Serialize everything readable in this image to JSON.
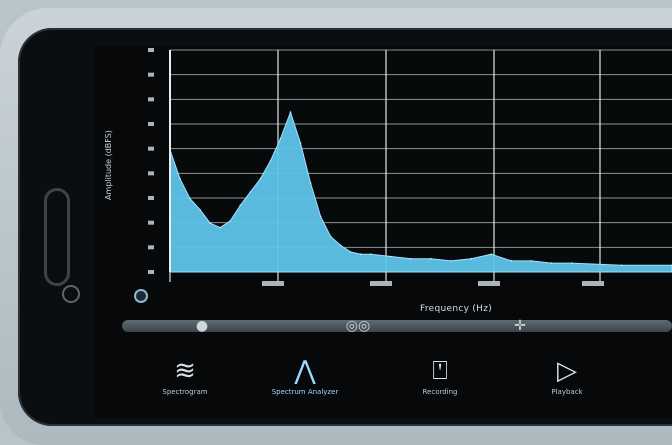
{
  "app": {
    "y_axis_label": "Amplitude (dBFS)",
    "x_axis_label": "Frequency (Hz)"
  },
  "colors": {
    "spectrum_fill": "#5fc4ea",
    "grid": "#ffffff",
    "background": "#060809"
  },
  "toolbar": {
    "icons": [
      "record-dot-icon",
      "link-icon",
      "adjust-icon"
    ]
  },
  "tabs": [
    {
      "label": "Spectrogram",
      "icon": "spectrogram-icon",
      "active": false
    },
    {
      "label": "Spectrum Analyzer",
      "icon": "spectrum-icon",
      "active": true
    },
    {
      "label": "Recording",
      "icon": "microphone-icon",
      "active": false
    },
    {
      "label": "Playback",
      "icon": "play-icon",
      "active": false
    }
  ],
  "chart_data": {
    "type": "area",
    "xlabel": "Frequency (Hz)",
    "ylabel": "Amplitude (dBFS)",
    "grid": true,
    "x": [
      0,
      100,
      200,
      300,
      400,
      500,
      600,
      700,
      800,
      900,
      1000,
      1100,
      1200,
      1300,
      1400,
      1500,
      1600,
      1700,
      1800,
      1900,
      2000,
      2200,
      2400,
      2600,
      2800,
      3000,
      3200,
      3400,
      3600,
      3800,
      4000,
      4500,
      5000
    ],
    "y": [
      0.55,
      0.42,
      0.33,
      0.28,
      0.22,
      0.2,
      0.23,
      0.3,
      0.36,
      0.42,
      0.5,
      0.6,
      0.72,
      0.58,
      0.4,
      0.25,
      0.16,
      0.12,
      0.09,
      0.08,
      0.08,
      0.07,
      0.06,
      0.06,
      0.05,
      0.06,
      0.08,
      0.05,
      0.05,
      0.04,
      0.04,
      0.03,
      0.03
    ],
    "ylim": [
      0,
      1
    ]
  }
}
